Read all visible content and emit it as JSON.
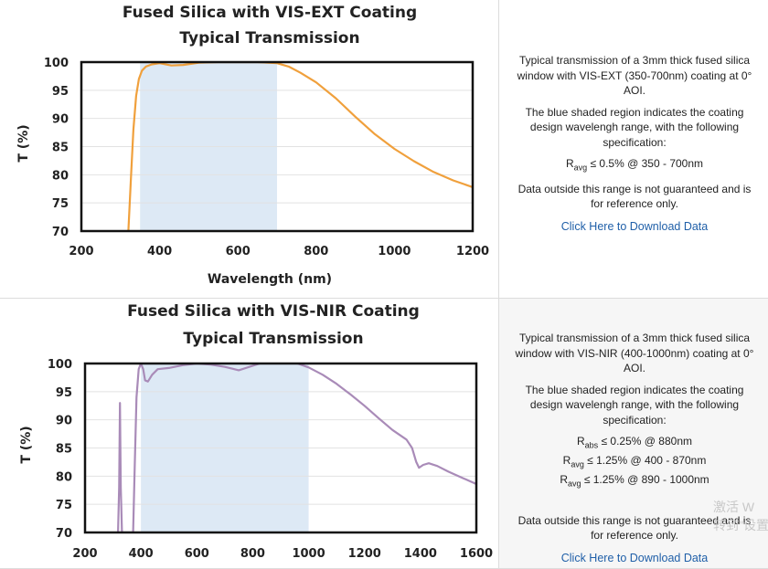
{
  "chart_data": [
    {
      "type": "line",
      "title": "Fused Silica with VIS-EXT Coating",
      "subtitle": "Typical Transmission",
      "xlabel": "Wavelength (nm)",
      "ylabel": "T (%)",
      "xlim": [
        200,
        1200
      ],
      "ylim": [
        70,
        100
      ],
      "xticks": [
        "200",
        "400",
        "600",
        "800",
        "1000",
        "1200"
      ],
      "yticks": [
        "70",
        "75",
        "80",
        "85",
        "90",
        "95",
        "100"
      ],
      "shaded_range": [
        350,
        700
      ],
      "series": [
        {
          "color": "#f0a03c",
          "x": [
            320,
            327,
            333,
            340,
            347,
            355,
            365,
            380,
            400,
            430,
            460,
            500,
            550,
            600,
            650,
            700,
            730,
            760,
            800,
            850,
            900,
            950,
            1000,
            1050,
            1100,
            1150,
            1200
          ],
          "y": [
            70,
            80,
            88,
            94,
            97,
            98.5,
            99.2,
            99.6,
            99.8,
            99.4,
            99.5,
            99.9,
            100,
            100,
            100,
            99.8,
            99.2,
            98.1,
            96.4,
            93.6,
            90.3,
            87.2,
            84.6,
            82.4,
            80.5,
            79,
            77.8
          ]
        }
      ]
    },
    {
      "type": "line",
      "title": "Fused Silica with VIS-NIR Coating",
      "subtitle": "Typical Transmission",
      "xlabel": "",
      "ylabel": "T (%)",
      "xlim": [
        200,
        1600
      ],
      "ylim": [
        70,
        100
      ],
      "xticks": [
        "200",
        "400",
        "600",
        "800",
        "1000",
        "1200",
        "1400",
        "1600"
      ],
      "yticks": [
        "70",
        "75",
        "80",
        "85",
        "90",
        "95",
        "100"
      ],
      "shaded_range": [
        400,
        1000
      ],
      "series": [
        {
          "color": "#a98bb8",
          "x": [
            318,
            322,
            325,
            328,
            332,
            372,
            378,
            384,
            392,
            400,
            408,
            415,
            425,
            440,
            460,
            500,
            550,
            600,
            650,
            700,
            750,
            800,
            850,
            900,
            950,
            1000,
            1050,
            1100,
            1150,
            1200,
            1250,
            1300,
            1350,
            1370,
            1385,
            1395,
            1410,
            1430,
            1460,
            1500,
            1550,
            1600
          ],
          "y": [
            70,
            78,
            93,
            78,
            70,
            70,
            82,
            94,
            99,
            100,
            99,
            97,
            96.8,
            98,
            99,
            99.2,
            99.7,
            100,
            99.8,
            99.4,
            98.8,
            99.6,
            100.4,
            100.6,
            100.2,
            99.3,
            98,
            96.4,
            94.5,
            92.5,
            90.3,
            88.2,
            86.5,
            85,
            82.5,
            81.5,
            82,
            82.3,
            81.8,
            80.8,
            79.7,
            78.6
          ]
        }
      ]
    }
  ],
  "descriptions": [
    {
      "p1": "Typical transmission of a 3mm thick fused silica window with VIS-EXT (350-700nm) coating at 0° AOI.",
      "p2": "The blue shaded region indicates the coating design wavelengh range, with the following specification:",
      "specs": [
        {
          "main": "R",
          "sub": "avg",
          "rest": " ≤ 0.5% @ 350 - 700nm"
        }
      ],
      "p3": "Data outside this range is not guaranteed and is for reference only.",
      "link": "Click Here to Download Data"
    },
    {
      "p1": "Typical transmission of a 3mm thick fused silica window with VIS-NIR (400-1000nm) coating at 0° AOI.",
      "p2": "The blue shaded region indicates the coating design wavelengh range, with the following specification:",
      "specs": [
        {
          "main": "R",
          "sub": "abs",
          "rest": " ≤ 0.25% @ 880nm"
        },
        {
          "main": "R",
          "sub": "avg",
          "rest": " ≤ 1.25% @ 400 - 870nm"
        },
        {
          "main": "R",
          "sub": "avg",
          "rest": " ≤ 1.25% @ 890 - 1000nm"
        }
      ],
      "p3": "Data outside this range is not guaranteed and is for reference only.",
      "link": "Click Here to Download Data"
    }
  ],
  "watermark": {
    "line1": "激活 W",
    "line2": "转到\"设置"
  },
  "colors": {
    "shade": "#dde9f5",
    "link": "#1f5fa8"
  }
}
